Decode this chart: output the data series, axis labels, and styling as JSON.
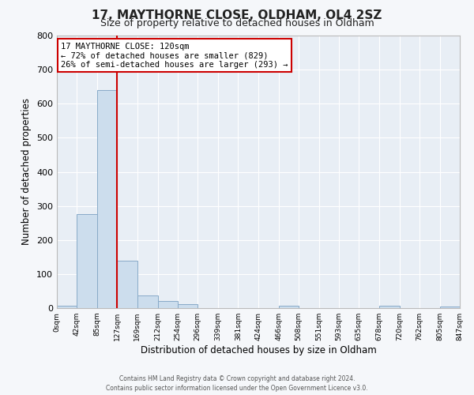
{
  "title": "17, MAYTHORNE CLOSE, OLDHAM, OL4 2SZ",
  "subtitle": "Size of property relative to detached houses in Oldham",
  "xlabel": "Distribution of detached houses by size in Oldham",
  "ylabel": "Number of detached properties",
  "bar_color": "#ccdded",
  "bar_edge_color": "#88aac8",
  "fig_facecolor": "#f5f7fa",
  "ax_facecolor": "#e8eef5",
  "grid_color": "#ffffff",
  "bin_edges": [
    0,
    42,
    85,
    127,
    169,
    212,
    254,
    296,
    339,
    381,
    424,
    466,
    508,
    551,
    593,
    635,
    678,
    720,
    762,
    805,
    847
  ],
  "bin_labels": [
    "0sqm",
    "42sqm",
    "85sqm",
    "127sqm",
    "169sqm",
    "212sqm",
    "254sqm",
    "296sqm",
    "339sqm",
    "381sqm",
    "424sqm",
    "466sqm",
    "508sqm",
    "551sqm",
    "593sqm",
    "635sqm",
    "678sqm",
    "720sqm",
    "762sqm",
    "805sqm",
    "847sqm"
  ],
  "bar_heights": [
    7,
    275,
    641,
    140,
    38,
    20,
    11,
    0,
    0,
    0,
    0,
    8,
    0,
    0,
    0,
    0,
    8,
    0,
    0,
    5
  ],
  "ylim": [
    0,
    800
  ],
  "yticks": [
    0,
    100,
    200,
    300,
    400,
    500,
    600,
    700,
    800
  ],
  "red_line_x": 127,
  "annotation_title": "17 MAYTHORNE CLOSE: 120sqm",
  "annotation_line1": "← 72% of detached houses are smaller (829)",
  "annotation_line2": "26% of semi-detached houses are larger (293) →",
  "annotation_box_color": "#ffffff",
  "annotation_box_edge_color": "#cc0000",
  "red_line_color": "#cc0000",
  "footer_line1": "Contains HM Land Registry data © Crown copyright and database right 2024.",
  "footer_line2": "Contains public sector information licensed under the Open Government Licence v3.0."
}
